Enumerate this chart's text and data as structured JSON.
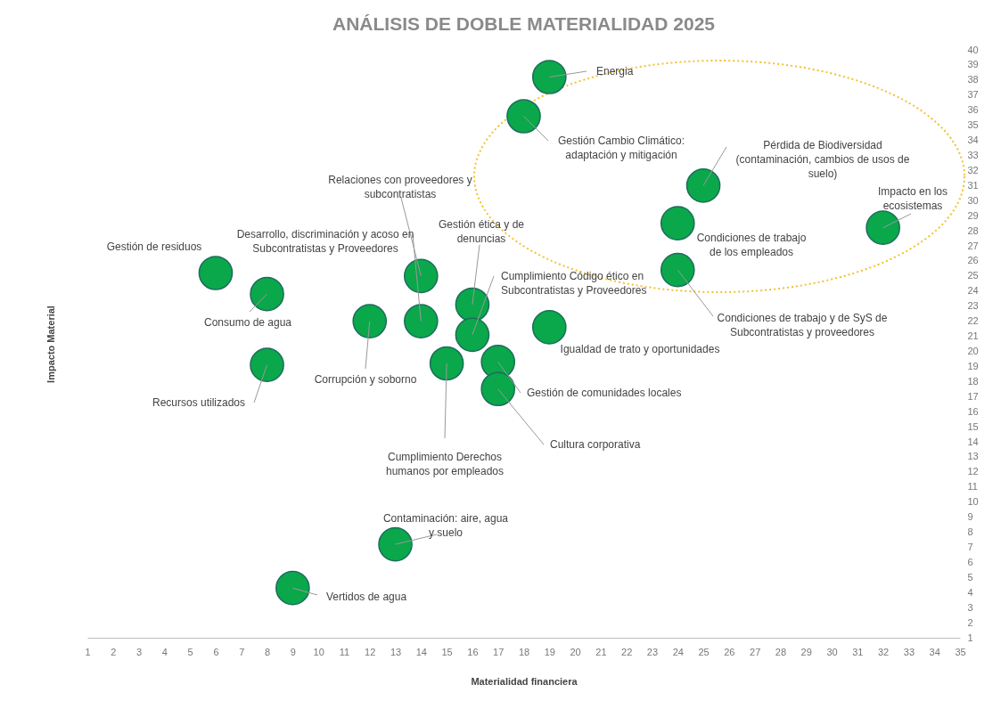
{
  "chart_data": {
    "type": "scatter",
    "title": "ANÁLISIS DE DOBLE MATERIALIDAD 2025",
    "xlabel": "Materialidad financiera",
    "ylabel": "Impacto Material",
    "color": "#0aa84a",
    "marker": "circle",
    "x": [
      19,
      18,
      25,
      24,
      32,
      24,
      6,
      8,
      14,
      14,
      16,
      16,
      12,
      19,
      15,
      17,
      17,
      8,
      13,
      9
    ],
    "values": [
      38.2,
      35.6,
      31.0,
      28.5,
      28.2,
      25.4,
      25.2,
      23.8,
      22.0,
      25.0,
      23.1,
      21.1,
      22.0,
      21.6,
      19.2,
      19.3,
      17.5,
      19.1,
      7.2,
      4.3
    ],
    "xlim": [
      1,
      35
    ],
    "ylim": [
      1,
      40
    ],
    "xticks": [
      1,
      2,
      3,
      4,
      5,
      6,
      7,
      8,
      9,
      10,
      11,
      12,
      13,
      14,
      15,
      16,
      17,
      18,
      19,
      20,
      21,
      22,
      23,
      24,
      25,
      26,
      27,
      28,
      29,
      30,
      31,
      32,
      33,
      34,
      35
    ],
    "yticks": [
      1,
      2,
      3,
      4,
      5,
      6,
      7,
      8,
      9,
      10,
      11,
      12,
      13,
      14,
      15,
      16,
      17,
      18,
      19,
      20,
      21,
      22,
      23,
      24,
      25,
      26,
      27,
      28,
      29,
      30,
      31,
      32,
      33,
      34,
      35,
      36,
      37,
      38,
      39,
      40
    ],
    "annotations": [
      {
        "text": "Energia",
        "x": 19,
        "y": 38.2
      },
      {
        "text": "Gestión Cambio Climático:\nadaptación y mitigación",
        "x": 18,
        "y": 35.6
      },
      {
        "text": "Pérdida de Biodiversidad\n(contaminación, cambios de usos de\nsuelo)",
        "x": 25,
        "y": 31.0
      },
      {
        "text": "Condiciones de trabajo\nde los empleados",
        "x": 24,
        "y": 28.5
      },
      {
        "text": "Impacto en los\necosistemas",
        "x": 32,
        "y": 28.2
      },
      {
        "text": "Condiciones de trabajo y de SyS de\nSubcontratistas y proveedores",
        "x": 24,
        "y": 25.4
      },
      {
        "text": "Gestión de residuos",
        "x": 6,
        "y": 25.2
      },
      {
        "text": "Consumo de agua",
        "x": 8,
        "y": 23.8
      },
      {
        "text": "Desarrollo, discriminación y acoso en\nSubcontratistas y Proveedores",
        "x": 14,
        "y": 22.0
      },
      {
        "text": "Relaciones con proveedores y\nsubcontratistas",
        "x": 14,
        "y": 25.0
      },
      {
        "text": "Gestión ética y de\ndenuncias",
        "x": 16,
        "y": 23.1
      },
      {
        "text": "Cumplimiento Código ético en\nSubcontratistas y Proveedores",
        "x": 16,
        "y": 21.1
      },
      {
        "text": "Corrupción y soborno",
        "x": 12,
        "y": 22.0
      },
      {
        "text": "Igualdad de trato y oportunidades",
        "x": 19,
        "y": 21.6
      },
      {
        "text": "Cumplimiento Derechos\nhumanos por empleados",
        "x": 15,
        "y": 19.2
      },
      {
        "text": "Gestión de comunidades locales",
        "x": 17,
        "y": 19.3
      },
      {
        "text": "Cultura corporativa",
        "x": 17,
        "y": 17.5
      },
      {
        "text": "Recursos utilizados",
        "x": 8,
        "y": 19.1
      },
      {
        "text": "Contaminación: aire, agua\ny suelo",
        "x": 13,
        "y": 7.2
      },
      {
        "text": "Vertidos de agua",
        "x": 9,
        "y": 4.3
      }
    ]
  }
}
